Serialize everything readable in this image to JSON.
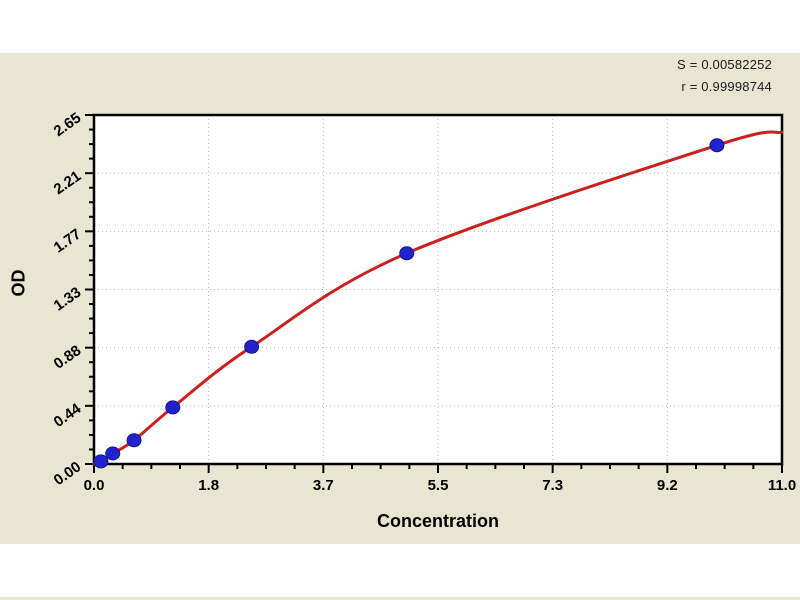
{
  "stats": {
    "s_line": "S = 0.00582252",
    "r_line": "r = 0.99998744"
  },
  "chart_data": {
    "type": "scatter",
    "title": "",
    "xlabel": "Concentration",
    "ylabel": "OD",
    "xlim": [
      0,
      11
    ],
    "ylim": [
      0,
      2.65
    ],
    "x_ticks": [
      "0.0",
      "1.8",
      "3.7",
      "5.5",
      "7.3",
      "9.2",
      "11.0"
    ],
    "y_ticks": [
      "0.00",
      "0.44",
      "0.88",
      "1.33",
      "1.77",
      "2.21",
      "2.65"
    ],
    "minor_ticks_per_major": 3,
    "grid": true,
    "legend": "none",
    "colors": {
      "curve": "#cc2020",
      "point_fill": "#2222cc",
      "point_edge": "#16168c",
      "grid": "#b6b6c4",
      "frame": "#000000",
      "panel_bg": "#e9e5d3",
      "plot_bg": "#ffffff"
    },
    "series": [
      {
        "name": "standard-points",
        "type": "scatter",
        "x": [
          0.11,
          0.3,
          0.64,
          1.26,
          2.52,
          5.0,
          9.96
        ],
        "y": [
          0.02,
          0.08,
          0.18,
          0.43,
          0.89,
          1.6,
          2.42
        ]
      },
      {
        "name": "fit-curve",
        "type": "line",
        "x": [
          0,
          0.11,
          0.3,
          0.64,
          1.26,
          2.52,
          5.0,
          9.96,
          11
        ],
        "y": [
          0.0,
          0.02,
          0.08,
          0.18,
          0.43,
          0.89,
          1.6,
          2.42,
          2.52
        ]
      }
    ],
    "fit_stats": {
      "S": "0.00582252",
      "r": "0.99998744"
    }
  }
}
